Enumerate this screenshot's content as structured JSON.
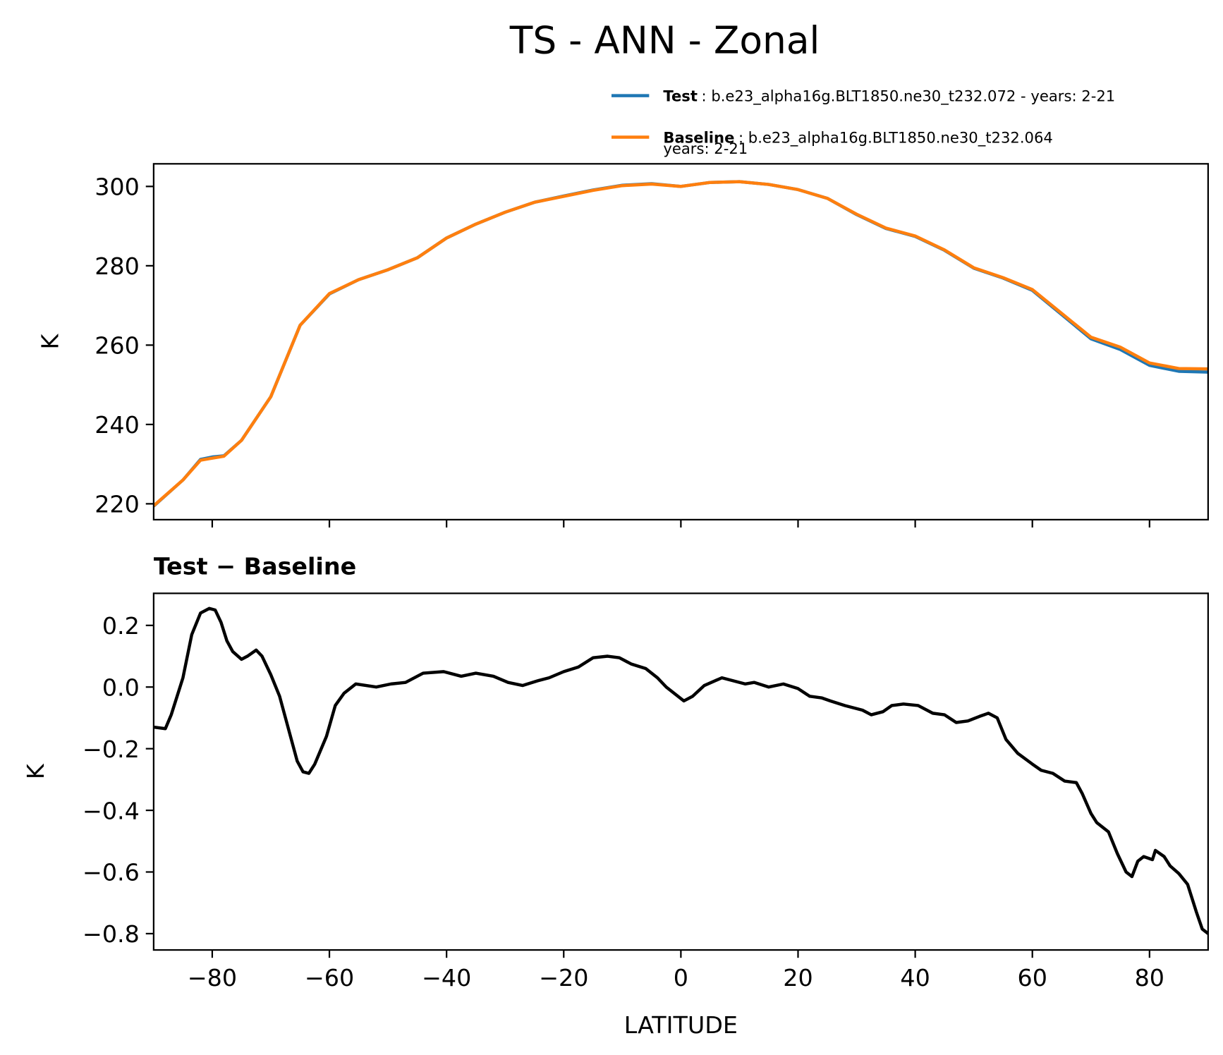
{
  "title": "TS - ANN - Zonal",
  "chart_data": [
    {
      "type": "line",
      "ylabel": "K",
      "x": [
        -90,
        -85,
        -82,
        -80,
        -78,
        -75,
        -70,
        -65,
        -60,
        -55,
        -50,
        -45,
        -40,
        -35,
        -30,
        -25,
        -20,
        -15,
        -10,
        -5,
        0,
        5,
        10,
        15,
        20,
        25,
        30,
        35,
        40,
        45,
        50,
        55,
        60,
        65,
        70,
        75,
        80,
        85,
        90
      ],
      "series": [
        {
          "name": "Test",
          "label": ": b.e23_alpha16g.BLT1850.ne30_t232.072 - years: 2-21",
          "color": "#1f77b4",
          "values": [
            219.4,
            226,
            231.2,
            231.8,
            232.1,
            236,
            247,
            265,
            272.9,
            276.5,
            279,
            282,
            287,
            290.5,
            293.5,
            296,
            297.6,
            299.1,
            300.3,
            300.7,
            300,
            301,
            301.2,
            300.5,
            299.2,
            297,
            292.9,
            289.4,
            287.4,
            283.9,
            279.4,
            276.9,
            273.8,
            267.7,
            261.6,
            258.9,
            254.9,
            253.4,
            253.2
          ]
        },
        {
          "name": "Baseline",
          "label": ": b.e23_alpha16g.BLT1850.ne30_t232.064",
          "label2": "years: 2-21",
          "color": "#ff7f0e",
          "values": [
            219.5,
            226,
            231,
            231.5,
            232,
            236,
            247,
            265,
            273,
            276.5,
            279,
            282,
            287,
            290.5,
            293.5,
            296,
            297.5,
            299,
            300.2,
            300.6,
            300,
            301,
            301.2,
            300.5,
            299.2,
            297,
            293,
            289.5,
            287.5,
            284,
            279.5,
            277,
            274,
            268,
            262,
            259.5,
            255.5,
            254.1,
            254
          ]
        }
      ],
      "xlim": [
        -90,
        90
      ],
      "xticks": [
        -80,
        -60,
        -40,
        -20,
        0,
        20,
        40,
        60,
        80
      ],
      "ylim": [
        216,
        305.7
      ],
      "yticks": [
        220,
        240,
        260,
        280,
        300
      ]
    },
    {
      "type": "line",
      "title": "Test − Baseline",
      "xlabel": "LATITUDE",
      "ylabel": "K",
      "x": [
        -90,
        -88,
        -87,
        -85,
        -83.5,
        -82,
        -80.5,
        -79.5,
        -78.5,
        -77.5,
        -76.5,
        -75,
        -74,
        -72.5,
        -71.5,
        -70,
        -68.5,
        -67.5,
        -66.5,
        -65.5,
        -64.5,
        -63.5,
        -62.5,
        -60.5,
        -59,
        -57.5,
        -55.5,
        -52,
        -49.5,
        -47,
        -44,
        -40.5,
        -37.5,
        -35,
        -32,
        -29.5,
        -27,
        -24.5,
        -22.5,
        -20,
        -17.5,
        -15,
        -12.5,
        -10.5,
        -8.5,
        -6,
        -4,
        -2.5,
        0.5,
        2,
        4,
        7,
        9,
        11,
        12.5,
        15,
        17.5,
        20,
        22,
        24,
        25.5,
        28,
        31,
        32.5,
        34.5,
        36,
        38,
        40.5,
        43,
        45,
        47,
        49,
        51,
        52.5,
        54,
        55.5,
        57.5,
        60,
        61.5,
        63.5,
        65.5,
        67.5,
        68.5,
        70,
        71,
        73,
        74.5,
        76,
        77,
        78,
        79,
        80.5,
        81,
        82.5,
        83.5,
        85,
        86.5,
        88,
        89,
        90
      ],
      "series": [
        {
          "name": "Test − Baseline",
          "color": "#000000",
          "values": [
            -0.13,
            -0.135,
            -0.09,
            0.03,
            0.17,
            0.24,
            0.255,
            0.25,
            0.21,
            0.15,
            0.115,
            0.09,
            0.1,
            0.12,
            0.1,
            0.04,
            -0.03,
            -0.1,
            -0.17,
            -0.24,
            -0.275,
            -0.28,
            -0.25,
            -0.16,
            -0.06,
            -0.02,
            0.01,
            0.0,
            0.01,
            0.015,
            0.045,
            0.05,
            0.035,
            0.045,
            0.035,
            0.015,
            0.005,
            0.02,
            0.03,
            0.05,
            0.065,
            0.095,
            0.1,
            0.095,
            0.075,
            0.06,
            0.03,
            0.0,
            -0.045,
            -0.03,
            0.005,
            0.03,
            0.02,
            0.01,
            0.015,
            0.0,
            0.01,
            -0.005,
            -0.03,
            -0.035,
            -0.045,
            -0.06,
            -0.075,
            -0.09,
            -0.08,
            -0.06,
            -0.055,
            -0.06,
            -0.085,
            -0.09,
            -0.115,
            -0.11,
            -0.095,
            -0.085,
            -0.1,
            -0.17,
            -0.215,
            -0.25,
            -0.27,
            -0.28,
            -0.305,
            -0.31,
            -0.345,
            -0.41,
            -0.44,
            -0.47,
            -0.54,
            -0.6,
            -0.615,
            -0.565,
            -0.55,
            -0.56,
            -0.53,
            -0.55,
            -0.58,
            -0.605,
            -0.64,
            -0.73,
            -0.785,
            -0.8
          ]
        }
      ],
      "xlim": [
        -90,
        90
      ],
      "xticks": [
        {
          "value": -80,
          "label": "−80"
        },
        {
          "value": -60,
          "label": "−60"
        },
        {
          "value": -40,
          "label": "−40"
        },
        {
          "value": -20,
          "label": "−20"
        },
        0,
        20,
        40,
        60,
        80
      ],
      "ylim": [
        -0.853,
        0.304
      ],
      "yticks": [
        0.2,
        {
          "value": 0,
          "label": "0.0"
        },
        {
          "value": -0.2,
          "label": "−0.2"
        },
        {
          "value": -0.4,
          "label": "−0.4"
        },
        {
          "value": -0.6,
          "label": "−0.6"
        },
        {
          "value": -0.8,
          "label": "−0.8"
        }
      ]
    }
  ]
}
